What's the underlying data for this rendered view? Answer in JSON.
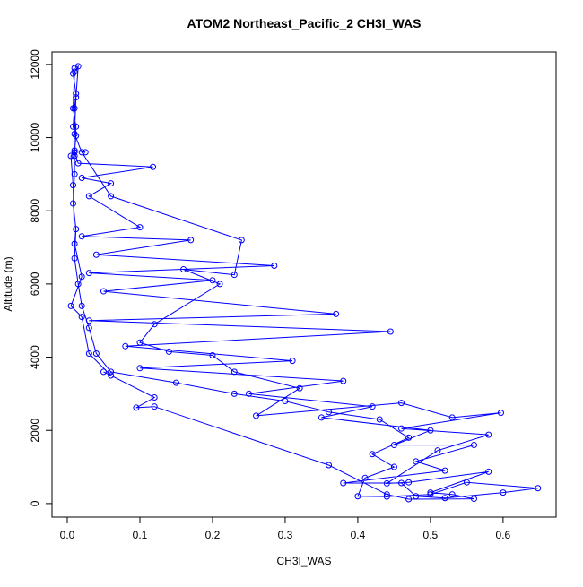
{
  "chart_data": {
    "type": "line",
    "title": "ATOM2 Northeast_Pacific_2 CH3I_WAS",
    "x_label": "CH3I_WAS",
    "y_label": "Altitude (m)",
    "color": "#0000ff",
    "marker": "circle",
    "x": [
      0.01,
      0.008,
      0.012,
      0.01,
      0.008,
      0.012,
      0.01,
      0.015,
      0.118,
      0.02,
      0.06,
      0.03,
      0.1,
      0.02,
      0.17,
      0.04,
      0.285,
      0.03,
      0.2,
      0.05,
      0.37,
      0.03,
      0.445,
      0.08,
      0.31,
      0.1,
      0.38,
      0.25,
      0.42,
      0.35,
      0.5,
      0.45,
      0.56,
      0.48,
      0.52,
      0.38,
      0.46,
      0.48,
      0.52,
      0.6,
      0.648,
      0.55,
      0.5,
      0.44,
      0.4,
      0.41,
      0.45,
      0.42,
      0.47,
      0.43,
      0.36,
      0.3,
      0.23,
      0.15,
      0.06,
      0.04,
      0.03,
      0.02,
      0.015,
      0.01,
      0.012,
      0.008,
      0.01,
      0.01,
      0.012,
      0.008,
      0.01,
      0.015,
      0.012,
      0.01,
      0.02,
      0.06,
      0.24,
      0.23,
      0.16,
      0.21,
      0.12,
      0.1,
      0.14,
      0.2,
      0.23,
      0.32,
      0.26,
      0.46,
      0.53,
      0.597,
      0.46,
      0.58,
      0.51,
      0.44,
      0.47,
      0.58,
      0.5,
      0.53,
      0.56,
      0.47,
      0.44,
      0.36,
      0.12,
      0.095,
      0.12,
      0.05,
      0.06,
      0.03,
      0.02,
      0.005,
      0.02,
      0.01,
      0.008,
      0.005,
      0.01,
      0.025
    ],
    "values": [
      11900,
      11750,
      11200,
      10800,
      10300,
      10050,
      9600,
      9300,
      9200,
      8900,
      8750,
      8400,
      7550,
      7300,
      7200,
      6800,
      6500,
      6300,
      6100,
      5800,
      5180,
      5000,
      4700,
      4300,
      3900,
      3700,
      3350,
      3000,
      2650,
      2350,
      2000,
      1600,
      1600,
      1150,
      900,
      560,
      560,
      200,
      150,
      300,
      420,
      580,
      250,
      190,
      200,
      700,
      1000,
      1350,
      1800,
      2300,
      2500,
      2800,
      3000,
      3300,
      3600,
      4100,
      4800,
      5400,
      6000,
      6700,
      7500,
      8200,
      9000,
      9500,
      10300,
      10800,
      11800,
      11950,
      11100,
      10100,
      9600,
      8400,
      7200,
      6250,
      6400,
      6000,
      4900,
      4400,
      4150,
      4050,
      3600,
      3150,
      2400,
      2750,
      2350,
      2480,
      2050,
      1880,
      1450,
      550,
      580,
      870,
      300,
      250,
      130,
      120,
      250,
      1050,
      2650,
      2620,
      2900,
      3600,
      3500,
      4100,
      5100,
      5400,
      6200,
      7100,
      8700,
      9500,
      9650,
      9600
    ],
    "xlim": [
      -0.021,
      0.673
    ],
    "ylim": [
      -370,
      12340
    ],
    "xticks": [
      {
        "value": 0,
        "label": "0.0"
      },
      0.1,
      0.2,
      0.3,
      0.4,
      0.5,
      0.6
    ],
    "yticks": [
      0,
      2000,
      4000,
      6000,
      8000,
      10000,
      12000
    ]
  }
}
